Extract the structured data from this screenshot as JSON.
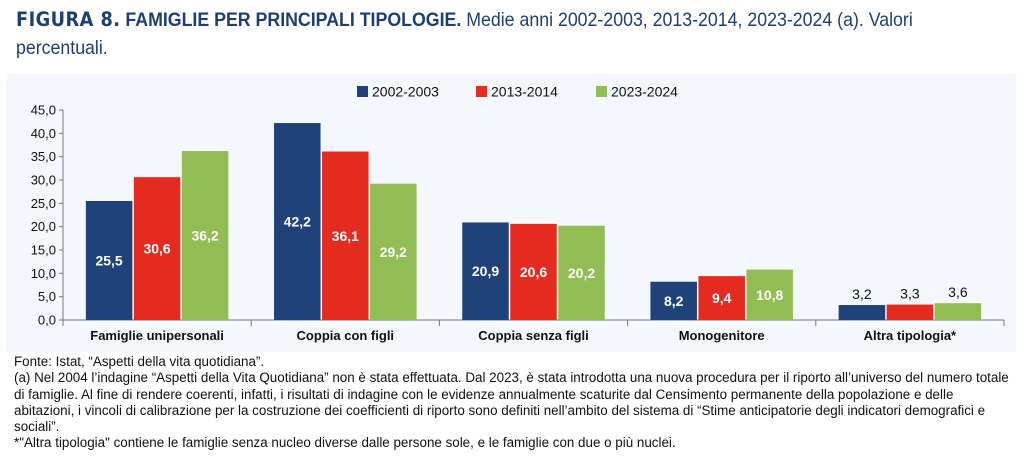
{
  "header": {
    "figure_label": "FIGURA 8.",
    "title": "FAMIGLIE PER PRINCIPALI TIPOLOGIE.",
    "subtitle": "Medie anni 2002-2003, 2013-2014, 2023-2024 (a). Valori percentuali."
  },
  "colors": {
    "2002-2003": "#1f4379",
    "2013-2014": "#e52a1f",
    "2023-2024": "#92bd55",
    "panel": "#f4f7fb",
    "title": "#1f3e73"
  },
  "chart_data": {
    "type": "bar",
    "categories": [
      "Famiglie unipersonali",
      "Coppia con figli",
      "Coppia senza figli",
      "Monogenitore",
      "Altra tipologia*"
    ],
    "series": [
      {
        "name": "2002-2003",
        "values": [
          25.5,
          42.2,
          20.9,
          8.2,
          3.2
        ],
        "labels": [
          "25,5",
          "42,2",
          "20,9",
          "8,2",
          "3,2"
        ]
      },
      {
        "name": "2013-2014",
        "values": [
          30.6,
          36.1,
          20.6,
          9.4,
          3.3
        ],
        "labels": [
          "30,6",
          "36,1",
          "20,6",
          "9,4",
          "3,3"
        ]
      },
      {
        "name": "2023-2024",
        "values": [
          36.2,
          29.2,
          20.2,
          10.8,
          3.6
        ],
        "labels": [
          "36,2",
          "29,2",
          "20,2",
          "10,8",
          "3,6"
        ]
      }
    ],
    "yticks": [
      "0,0",
      "5,0",
      "10,0",
      "15,0",
      "20,0",
      "25,0",
      "30,0",
      "35,0",
      "40,0",
      "45,0"
    ],
    "ylim": [
      0,
      45
    ],
    "legend": "top-center",
    "grid": false
  },
  "notes": {
    "source": "Fonte: Istat, “Aspetti della vita quotidiana”.",
    "note_a": "(a) Nel 2004 l’indagine “Aspetti della Vita Quotidiana” non è stata effettuata. Dal 2023, è stata introdotta una nuova procedura per il riporto all’universo del numero totale di famiglie. Al fine di rendere coerenti, infatti, i risultati di indagine con le evidenze annualmente scaturite dal Censimento permanente della popolazione e delle abitazioni, i vincoli di calibrazione per la costruzione dei coefficienti di riporto sono definiti nell’ambito del sistema di “Stime anticipatorie degli indicatori demografici e sociali”.",
    "note_star": "*\"Altra tipologia\" contiene le famiglie senza nucleo diverse dalle persone sole, e le famiglie con due o più nuclei."
  }
}
